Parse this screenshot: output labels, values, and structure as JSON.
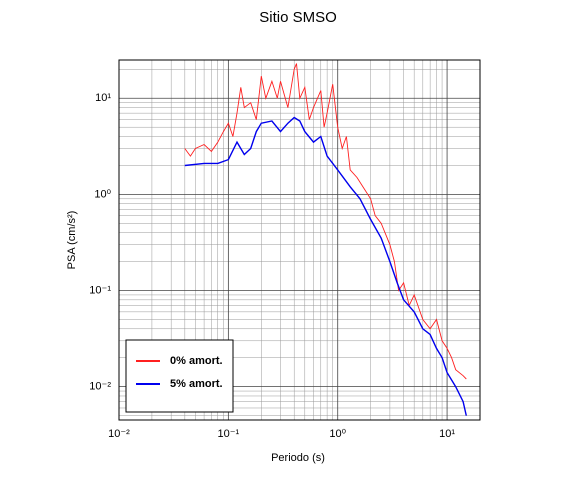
{
  "chart_data": {
    "type": "line",
    "title": "Sitio SMSO",
    "xlabel": "Periodo (s)",
    "ylabel": "PSA (cm/s²)",
    "xscale": "log",
    "yscale": "log",
    "grid": true,
    "legend": "lower left",
    "xlim": [
      0.01,
      20
    ],
    "ylim": [
      0.0045,
      25
    ],
    "xticks": [
      {
        "value": 0.01,
        "label": "10⁻²"
      },
      {
        "value": 0.1,
        "label": "10⁻¹"
      },
      {
        "value": 1,
        "label": "10⁰"
      },
      {
        "value": 10,
        "label": "10¹"
      }
    ],
    "yticks": [
      {
        "value": 0.01,
        "label": "10⁻²"
      },
      {
        "value": 0.1,
        "label": "10⁻¹"
      },
      {
        "value": 1,
        "label": "10⁰"
      },
      {
        "value": 10,
        "label": "10¹"
      }
    ],
    "series": [
      {
        "name": "0% amort.",
        "color": "#ff2020",
        "x": [
          0.04,
          0.045,
          0.05,
          0.06,
          0.07,
          0.08,
          0.09,
          0.1,
          0.11,
          0.12,
          0.13,
          0.14,
          0.16,
          0.18,
          0.2,
          0.22,
          0.25,
          0.28,
          0.3,
          0.35,
          0.4,
          0.42,
          0.45,
          0.5,
          0.55,
          0.6,
          0.7,
          0.75,
          0.8,
          0.9,
          1.0,
          1.1,
          1.2,
          1.3,
          1.5,
          1.7,
          2,
          2.2,
          2.5,
          3,
          3.3,
          3.6,
          4,
          4.5,
          5,
          6,
          7,
          8,
          9,
          10,
          11,
          12,
          14,
          15
        ],
        "values": [
          3.0,
          2.5,
          3.0,
          3.3,
          2.8,
          3.5,
          4.5,
          5.5,
          4.0,
          7.0,
          13,
          8,
          9,
          6,
          17,
          10,
          15,
          10,
          15,
          8,
          20,
          23,
          10,
          13,
          6,
          8,
          12,
          5,
          7,
          14,
          5,
          3,
          4,
          1.8,
          1.5,
          1.2,
          0.9,
          0.6,
          0.5,
          0.3,
          0.2,
          0.1,
          0.12,
          0.07,
          0.09,
          0.05,
          0.04,
          0.05,
          0.03,
          0.025,
          0.02,
          0.015,
          0.013,
          0.012
        ]
      },
      {
        "name": "5% amort.",
        "color": "#0000ee",
        "x": [
          0.04,
          0.06,
          0.08,
          0.1,
          0.12,
          0.14,
          0.16,
          0.18,
          0.2,
          0.25,
          0.3,
          0.35,
          0.4,
          0.45,
          0.5,
          0.6,
          0.7,
          0.8,
          1.0,
          1.3,
          1.6,
          2,
          2.5,
          3,
          3.5,
          4,
          5,
          6,
          7,
          8,
          9,
          10,
          12,
          14,
          15
        ],
        "values": [
          2.0,
          2.1,
          2.1,
          2.3,
          3.5,
          2.6,
          3.0,
          4.5,
          5.5,
          5.8,
          4.5,
          5.5,
          6.3,
          5.8,
          4.5,
          3.5,
          4.0,
          2.5,
          1.8,
          1.2,
          0.9,
          0.55,
          0.35,
          0.2,
          0.12,
          0.08,
          0.06,
          0.04,
          0.035,
          0.025,
          0.02,
          0.014,
          0.01,
          0.007,
          0.005
        ]
      }
    ]
  }
}
